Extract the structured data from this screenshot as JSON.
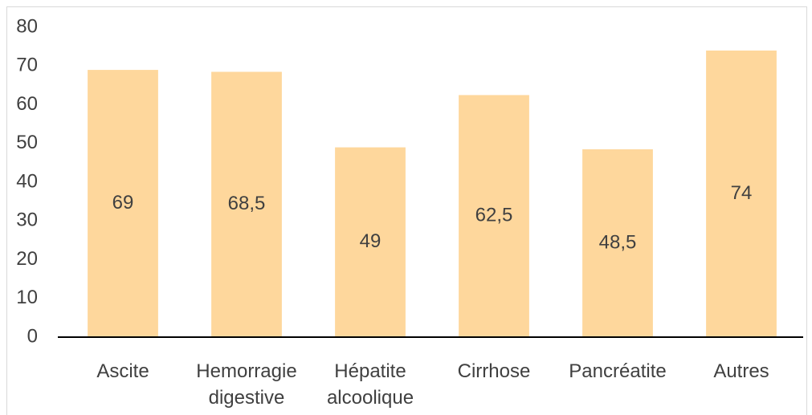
{
  "chart_data": {
    "type": "bar",
    "categories": [
      "Ascite",
      "Hemorragie digestive",
      "Hépatite alcoolique",
      "Cirrhose",
      "Pancréatite",
      "Autres"
    ],
    "values": [
      69,
      68.5,
      49,
      62.5,
      48.5,
      74
    ],
    "value_labels": [
      "69",
      "68,5",
      "49",
      "62,5",
      "48,5",
      "74"
    ],
    "color": "#fed79c",
    "ylim": [
      0,
      80
    ],
    "yticks": [
      0,
      10,
      20,
      30,
      40,
      50,
      60,
      70,
      80
    ],
    "grid": false
  }
}
